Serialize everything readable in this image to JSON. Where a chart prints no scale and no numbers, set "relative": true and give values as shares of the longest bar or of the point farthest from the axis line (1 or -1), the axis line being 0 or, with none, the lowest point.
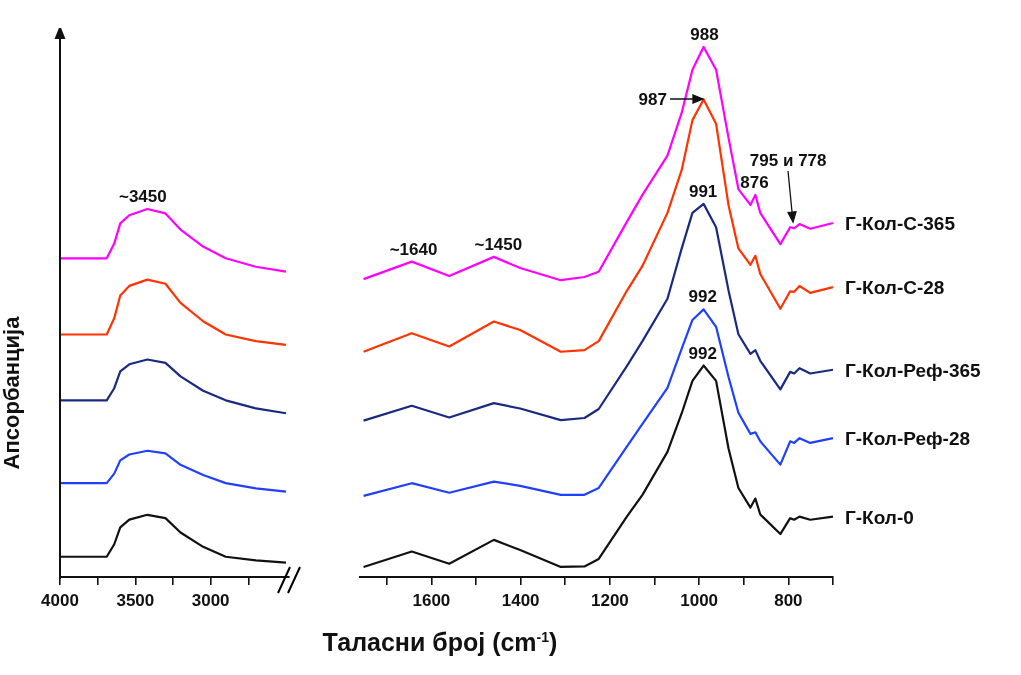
{
  "chart_data": [
    {
      "type": "line",
      "relative": true,
      "ylabel": "Апсорбанција",
      "xlim": [
        4000,
        2480
      ],
      "xticks": [
        4000,
        {
          "value": 3750,
          "label": null
        },
        3500,
        {
          "value": 3250,
          "label": null
        },
        3000,
        {
          "value": 2750,
          "label": null
        }
      ],
      "x": [
        4000,
        3850,
        3690,
        3640,
        3600,
        3540,
        3420,
        3300,
        3200,
        3050,
        2900,
        2700,
        2500
      ],
      "series": [
        {
          "color": "#ff00ff",
          "values": [
            0.866,
            0.866,
            0.866,
            0.906,
            0.961,
            0.983,
            1,
            0.988,
            0.944,
            0.898,
            0.866,
            0.843,
            0.83
          ]
        },
        {
          "color": "#ff3300",
          "values": [
            0.659,
            0.659,
            0.659,
            0.703,
            0.765,
            0.791,
            0.808,
            0.797,
            0.745,
            0.695,
            0.659,
            0.641,
            0.631
          ]
        },
        {
          "color": "#1a2a80",
          "values": [
            0.48,
            0.48,
            0.48,
            0.513,
            0.559,
            0.578,
            0.591,
            0.582,
            0.545,
            0.506,
            0.48,
            0.458,
            0.445
          ]
        },
        {
          "color": "#2040ff",
          "values": [
            0.255,
            0.255,
            0.255,
            0.281,
            0.317,
            0.333,
            0.343,
            0.336,
            0.305,
            0.277,
            0.255,
            0.241,
            0.232
          ]
        },
        {
          "color": "#111111",
          "values": [
            0.055,
            0.055,
            0.055,
            0.089,
            0.135,
            0.156,
            0.169,
            0.16,
            0.121,
            0.082,
            0.055,
            0.045,
            0.039
          ]
        }
      ],
      "annotations": [
        {
          "text": "~3450",
          "x": 3450,
          "y": 1
        }
      ]
    },
    {
      "type": "line",
      "relative": true,
      "xlabel": "Таласни број (cm$^{-1}$)",
      "xlim": [
        1760,
        700
      ],
      "xticks": [
        {
          "value": 1700,
          "label": null
        },
        1600,
        {
          "value": 1500,
          "label": null
        },
        1400,
        {
          "value": 1300,
          "label": null
        },
        1200,
        {
          "value": 1100,
          "label": null
        },
        1000,
        {
          "value": 900,
          "label": null
        },
        800,
        {
          "value": 700,
          "label": null
        }
      ],
      "x": [
        1752,
        1644,
        1560,
        1460,
        1401,
        1310,
        1257,
        1225,
        1162,
        1127,
        1071,
        1039,
        1015,
        990,
        962,
        934,
        912,
        885,
        874,
        863,
        818,
        796,
        787,
        775,
        751,
        700
      ],
      "series": [
        {
          "name": "Г-Кол-С-365",
          "color": "#ff00ff",
          "values": [
            0.562,
            0.595,
            0.568,
            0.604,
            0.583,
            0.56,
            0.566,
            0.576,
            0.67,
            0.721,
            0.795,
            0.876,
            0.957,
            1,
            0.957,
            0.828,
            0.732,
            0.702,
            0.721,
            0.687,
            0.628,
            0.66,
            0.658,
            0.666,
            0.657,
            0.668
          ]
        },
        {
          "name": "Г-Кол-С-28",
          "color": "#ff3300",
          "values": [
            0.425,
            0.46,
            0.435,
            0.482,
            0.466,
            0.425,
            0.428,
            0.445,
            0.54,
            0.587,
            0.687,
            0.768,
            0.862,
            0.901,
            0.855,
            0.701,
            0.62,
            0.589,
            0.606,
            0.572,
            0.506,
            0.539,
            0.538,
            0.549,
            0.536,
            0.547
          ]
        },
        {
          "name": "Г-Кол-Реф-365",
          "color": "#1a2a80",
          "values": [
            0.295,
            0.323,
            0.301,
            0.328,
            0.318,
            0.296,
            0.3,
            0.317,
            0.398,
            0.445,
            0.525,
            0.62,
            0.687,
            0.704,
            0.66,
            0.54,
            0.458,
            0.421,
            0.428,
            0.408,
            0.354,
            0.387,
            0.384,
            0.394,
            0.384,
            0.391
          ]
        },
        {
          "name": "Г-Кол-Реф-28",
          "color": "#2040ff",
          "values": [
            0.153,
            0.177,
            0.159,
            0.18,
            0.172,
            0.155,
            0.155,
            0.168,
            0.246,
            0.289,
            0.357,
            0.431,
            0.485,
            0.505,
            0.472,
            0.377,
            0.31,
            0.27,
            0.273,
            0.256,
            0.212,
            0.256,
            0.253,
            0.262,
            0.253,
            0.262
          ]
        },
        {
          "name": "Г-Кол-0",
          "color": "#111111",
          "values": [
            0.019,
            0.048,
            0.025,
            0.07,
            0.051,
            0.019,
            0.02,
            0.034,
            0.114,
            0.155,
            0.236,
            0.309,
            0.37,
            0.399,
            0.37,
            0.242,
            0.168,
            0.131,
            0.148,
            0.118,
            0.081,
            0.111,
            0.108,
            0.114,
            0.108,
            0.114
          ]
        }
      ],
      "annotations": [
        {
          "text": "~1640",
          "x": 1640,
          "y": 0.595
        },
        {
          "text": "~1450",
          "x": 1450,
          "y": 0.604
        },
        {
          "text": "988",
          "x": 988,
          "y": 1
        },
        {
          "text": "987",
          "x": 987,
          "y": 0.901
        },
        {
          "text": "991",
          "x": 991,
          "y": 0.704
        },
        {
          "text": "992",
          "x": 992,
          "y": 0.505
        },
        {
          "text": "992",
          "x": 992,
          "y": 0.399
        },
        {
          "text": "876",
          "x": 876,
          "y": 0.721
        },
        {
          "text": "795 и 778",
          "x": 787,
          "y": 0.658
        }
      ]
    }
  ]
}
